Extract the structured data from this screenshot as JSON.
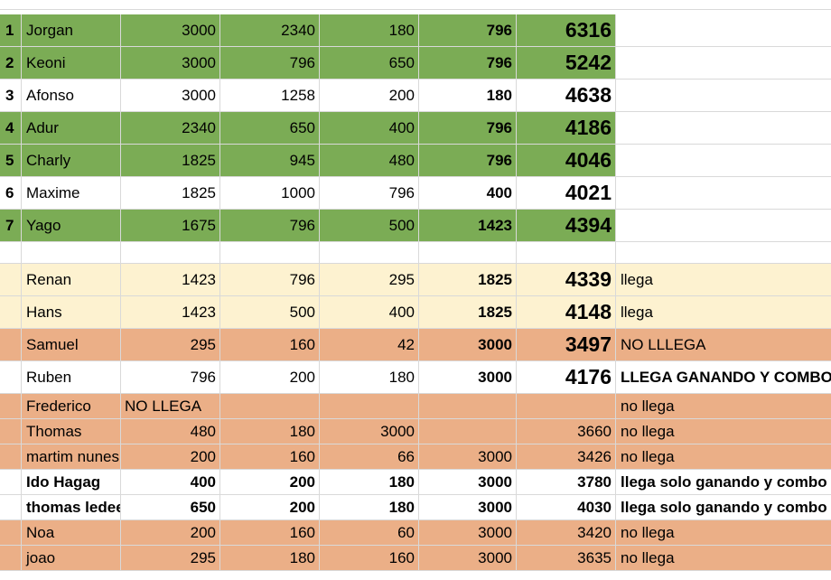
{
  "colors": {
    "green": "#7bac55",
    "yellow": "#fdf2d0",
    "orange": "#ebaf87"
  },
  "rows": [
    {
      "idx": "1",
      "name": "Jorgan",
      "v1": "3000",
      "v2": "2340",
      "v3": "180",
      "v4": "796",
      "total": "6316",
      "note": ""
    },
    {
      "idx": "2",
      "name": "Keoni",
      "v1": "3000",
      "v2": "796",
      "v3": "650",
      "v4": "796",
      "total": "5242",
      "note": ""
    },
    {
      "idx": "3",
      "name": "Afonso",
      "v1": "3000",
      "v2": "1258",
      "v3": "200",
      "v4": "180",
      "total": "4638",
      "note": ""
    },
    {
      "idx": "4",
      "name": "Adur",
      "v1": "2340",
      "v2": "650",
      "v3": "400",
      "v4": "796",
      "total": "4186",
      "note": ""
    },
    {
      "idx": "5",
      "name": "Charly",
      "v1": "1825",
      "v2": "945",
      "v3": "480",
      "v4": "796",
      "total": "4046",
      "note": ""
    },
    {
      "idx": "6",
      "name": "Maxime",
      "v1": "1825",
      "v2": "1000",
      "v3": "796",
      "v4": "400",
      "total": "4021",
      "note": ""
    },
    {
      "idx": "7",
      "name": "Yago",
      "v1": "1675",
      "v2": "796",
      "v3": "500",
      "v4": "1423",
      "total": "4394",
      "note": ""
    },
    {
      "idx": "",
      "name": "",
      "v1": "",
      "v2": "",
      "v3": "",
      "v4": "",
      "total": "",
      "note": ""
    },
    {
      "idx": "",
      "name": "Renan",
      "v1": "1423",
      "v2": "796",
      "v3": "295",
      "v4": "1825",
      "total": "4339",
      "note": "llega"
    },
    {
      "idx": "",
      "name": "Hans",
      "v1": "1423",
      "v2": "500",
      "v3": "400",
      "v4": "1825",
      "total": "4148",
      "note": "llega"
    },
    {
      "idx": "",
      "name": "Samuel",
      "v1": "295",
      "v2": "160",
      "v3": "42",
      "v4": "3000",
      "total": "3497",
      "note": "NO LLLEGA"
    },
    {
      "idx": "",
      "name": "Ruben",
      "v1": "796",
      "v2": "200",
      "v3": "180",
      "v4": "3000",
      "total": "4176",
      "note": "LLEGA GANANDO Y COMBO"
    },
    {
      "idx": "",
      "name": "Frederico",
      "v1": "NO LLEGA",
      "v2": "",
      "v3": "",
      "v4": "",
      "total": "",
      "note": "no llega"
    },
    {
      "idx": "",
      "name": "Thomas",
      "v1": "480",
      "v2": "180",
      "v3": "3000",
      "v4": "",
      "total": "3660",
      "note": "no llega"
    },
    {
      "idx": "",
      "name": "martim nunes",
      "v1": "200",
      "v2": "160",
      "v3": "66",
      "v4": "3000",
      "total": "3426",
      "note": "no llega"
    },
    {
      "idx": "",
      "name": "Ido Hagag",
      "v1": "400",
      "v2": "200",
      "v3": "180",
      "v4": "3000",
      "total": "3780",
      "note": "llega solo ganando y combo"
    },
    {
      "idx": "",
      "name": "thomas ledee",
      "v1": "650",
      "v2": "200",
      "v3": "180",
      "v4": "3000",
      "total": "4030",
      "note": "llega solo ganando y combo"
    },
    {
      "idx": "",
      "name": "Noa",
      "v1": "200",
      "v2": "160",
      "v3": "60",
      "v4": "3000",
      "total": "3420",
      "note": "no llega"
    },
    {
      "idx": "",
      "name": "joao",
      "v1": "295",
      "v2": "180",
      "v3": "160",
      "v4": "3000",
      "total": "3635",
      "note": "no llega"
    }
  ]
}
